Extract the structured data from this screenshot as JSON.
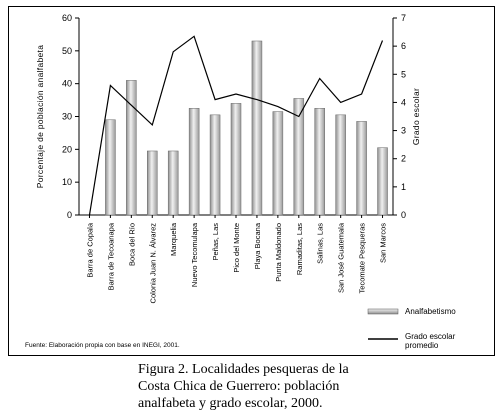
{
  "chart_data": {
    "type": "bar+line",
    "categories": [
      "Barra de Copala",
      "Barra de Tecoanapa",
      "Boca del Río",
      "Colonia Juan N. Álvarez",
      "Marquelia",
      "Nuevo Tecomulapa",
      "Peñas, Las",
      "Pico del Monte",
      "Playa Bocana",
      "Punta Maldonado",
      "Ramaditas, Las",
      "Salinas, Las",
      "San José Guatemala",
      "Tecomate Pesqueras",
      "San Marcos"
    ],
    "series": [
      {
        "name": "Analfabetismo",
        "type": "bar",
        "axis": "left",
        "values": [
          0,
          29,
          41,
          19.5,
          19.5,
          32.5,
          30.5,
          34,
          53,
          31.5,
          35.5,
          32.5,
          30.5,
          28.5,
          20.5
        ]
      },
      {
        "name": "Grado escolar promedio",
        "type": "line",
        "axis": "right",
        "values": [
          0,
          4.6,
          3.9,
          3.2,
          5.8,
          6.35,
          4.1,
          4.3,
          4.1,
          3.85,
          3.5,
          4.85,
          4.0,
          4.3,
          6.2
        ]
      }
    ],
    "ylabel": "Porcentaje de población analfabeta",
    "y2label": "Grado escolar",
    "ylim": [
      0,
      60
    ],
    "y2lim": [
      0,
      7
    ],
    "yticks": [
      "0",
      "10",
      "20",
      "30",
      "40",
      "50",
      "60"
    ],
    "y2ticks": [
      "0",
      "1",
      "2",
      "3",
      "4",
      "5",
      "6",
      "7"
    ],
    "legend": {
      "position": "bottom-right",
      "bar_label": "Analfabetismo",
      "line_label_1": "Grado escolar",
      "line_label_2": "promedio"
    },
    "source": "Fuente: Elaboración propia con base en INEGI, 2001.",
    "colors": {
      "bar_fill": "#a8a8a8",
      "bar_highlight": "#ececec",
      "line": "#000000"
    }
  },
  "caption": {
    "line1": "Figura 2. Localidades pesqueras de la",
    "line2": "Costa Chica de Guerrero: población",
    "line3": "analfabeta y grado escolar, 2000."
  }
}
